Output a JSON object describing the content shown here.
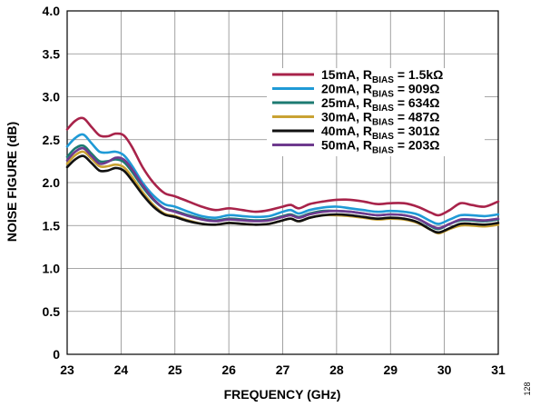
{
  "chart_data": {
    "type": "line",
    "xlabel": "FREQUENCY (GHz)",
    "ylabel": "NOISE FIGURE (dB)",
    "xlim": [
      23,
      31
    ],
    "ylim": [
      0,
      4.0
    ],
    "xticks": [
      "23",
      "24",
      "25",
      "26",
      "27",
      "28",
      "29",
      "30",
      "31"
    ],
    "yticks": [
      "0",
      "0.5",
      "1.0",
      "1.5",
      "2.0",
      "2.5",
      "3.0",
      "3.5",
      "4.0"
    ],
    "grid": true,
    "legend_position": "top-right",
    "side_note": "128",
    "x": [
      23.0,
      23.15,
      23.3,
      23.45,
      23.6,
      23.75,
      23.9,
      24.05,
      24.2,
      24.4,
      24.6,
      24.8,
      25.0,
      25.25,
      25.5,
      25.75,
      26.0,
      26.25,
      26.5,
      26.75,
      27.0,
      27.15,
      27.3,
      27.5,
      27.75,
      28.0,
      28.25,
      28.5,
      28.75,
      29.0,
      29.25,
      29.5,
      29.75,
      29.9,
      30.1,
      30.3,
      30.5,
      30.75,
      31.0
    ],
    "series": [
      {
        "name_main": "15mA, R",
        "name_sub": "BIAS",
        "name_tail": " = 1.5kΩ",
        "color": "#a8234a",
        "values": [
          2.62,
          2.72,
          2.75,
          2.65,
          2.55,
          2.54,
          2.57,
          2.55,
          2.42,
          2.18,
          2.0,
          1.88,
          1.84,
          1.78,
          1.72,
          1.68,
          1.7,
          1.68,
          1.66,
          1.68,
          1.72,
          1.74,
          1.7,
          1.75,
          1.78,
          1.8,
          1.8,
          1.78,
          1.75,
          1.76,
          1.76,
          1.72,
          1.65,
          1.62,
          1.68,
          1.76,
          1.74,
          1.72,
          1.78
        ]
      },
      {
        "name_main": "20mA, R",
        "name_sub": "BIAS",
        "name_tail": " = 909Ω",
        "color": "#1f9ad6",
        "values": [
          2.42,
          2.52,
          2.56,
          2.46,
          2.36,
          2.35,
          2.36,
          2.32,
          2.2,
          2.0,
          1.85,
          1.75,
          1.72,
          1.66,
          1.61,
          1.59,
          1.62,
          1.61,
          1.6,
          1.61,
          1.66,
          1.68,
          1.64,
          1.68,
          1.71,
          1.72,
          1.7,
          1.68,
          1.66,
          1.67,
          1.66,
          1.63,
          1.55,
          1.52,
          1.57,
          1.62,
          1.62,
          1.61,
          1.63
        ]
      },
      {
        "name_main": "25mA, R",
        "name_sub": "BIAS",
        "name_tail": " = 634Ω",
        "color": "#1d7a72",
        "values": [
          2.3,
          2.4,
          2.43,
          2.34,
          2.25,
          2.25,
          2.27,
          2.24,
          2.13,
          1.95,
          1.8,
          1.7,
          1.67,
          1.62,
          1.58,
          1.56,
          1.58,
          1.57,
          1.56,
          1.57,
          1.61,
          1.63,
          1.6,
          1.64,
          1.67,
          1.67,
          1.66,
          1.64,
          1.62,
          1.63,
          1.62,
          1.58,
          1.49,
          1.46,
          1.52,
          1.56,
          1.56,
          1.55,
          1.57
        ]
      },
      {
        "name_main": "30mA, R",
        "name_sub": "BIAS",
        "name_tail": " = 487Ω",
        "color": "#c9a233",
        "values": [
          2.22,
          2.32,
          2.36,
          2.28,
          2.19,
          2.19,
          2.21,
          2.18,
          2.07,
          1.89,
          1.74,
          1.64,
          1.61,
          1.56,
          1.52,
          1.51,
          1.53,
          1.52,
          1.51,
          1.52,
          1.56,
          1.58,
          1.55,
          1.59,
          1.62,
          1.62,
          1.61,
          1.59,
          1.57,
          1.58,
          1.57,
          1.53,
          1.45,
          1.41,
          1.46,
          1.5,
          1.5,
          1.49,
          1.51
        ]
      },
      {
        "name_main": "40mA, R",
        "name_sub": "BIAS",
        "name_tail": " = 301Ω",
        "color": "#111111",
        "values": [
          2.18,
          2.27,
          2.31,
          2.23,
          2.14,
          2.14,
          2.17,
          2.14,
          2.03,
          1.86,
          1.72,
          1.63,
          1.6,
          1.55,
          1.52,
          1.51,
          1.53,
          1.52,
          1.51,
          1.52,
          1.56,
          1.58,
          1.55,
          1.59,
          1.62,
          1.63,
          1.62,
          1.6,
          1.58,
          1.59,
          1.58,
          1.54,
          1.45,
          1.42,
          1.47,
          1.52,
          1.52,
          1.51,
          1.53
        ]
      },
      {
        "name_main": "50mA, R",
        "name_sub": "BIAS",
        "name_tail": " = 203Ω",
        "color": "#6e3a8e",
        "values": [
          2.26,
          2.36,
          2.4,
          2.31,
          2.22,
          2.24,
          2.29,
          2.27,
          2.16,
          1.97,
          1.81,
          1.7,
          1.66,
          1.61,
          1.57,
          1.55,
          1.57,
          1.56,
          1.55,
          1.56,
          1.6,
          1.62,
          1.59,
          1.63,
          1.66,
          1.67,
          1.66,
          1.64,
          1.62,
          1.63,
          1.62,
          1.58,
          1.5,
          1.47,
          1.52,
          1.57,
          1.57,
          1.56,
          1.58
        ]
      }
    ]
  }
}
